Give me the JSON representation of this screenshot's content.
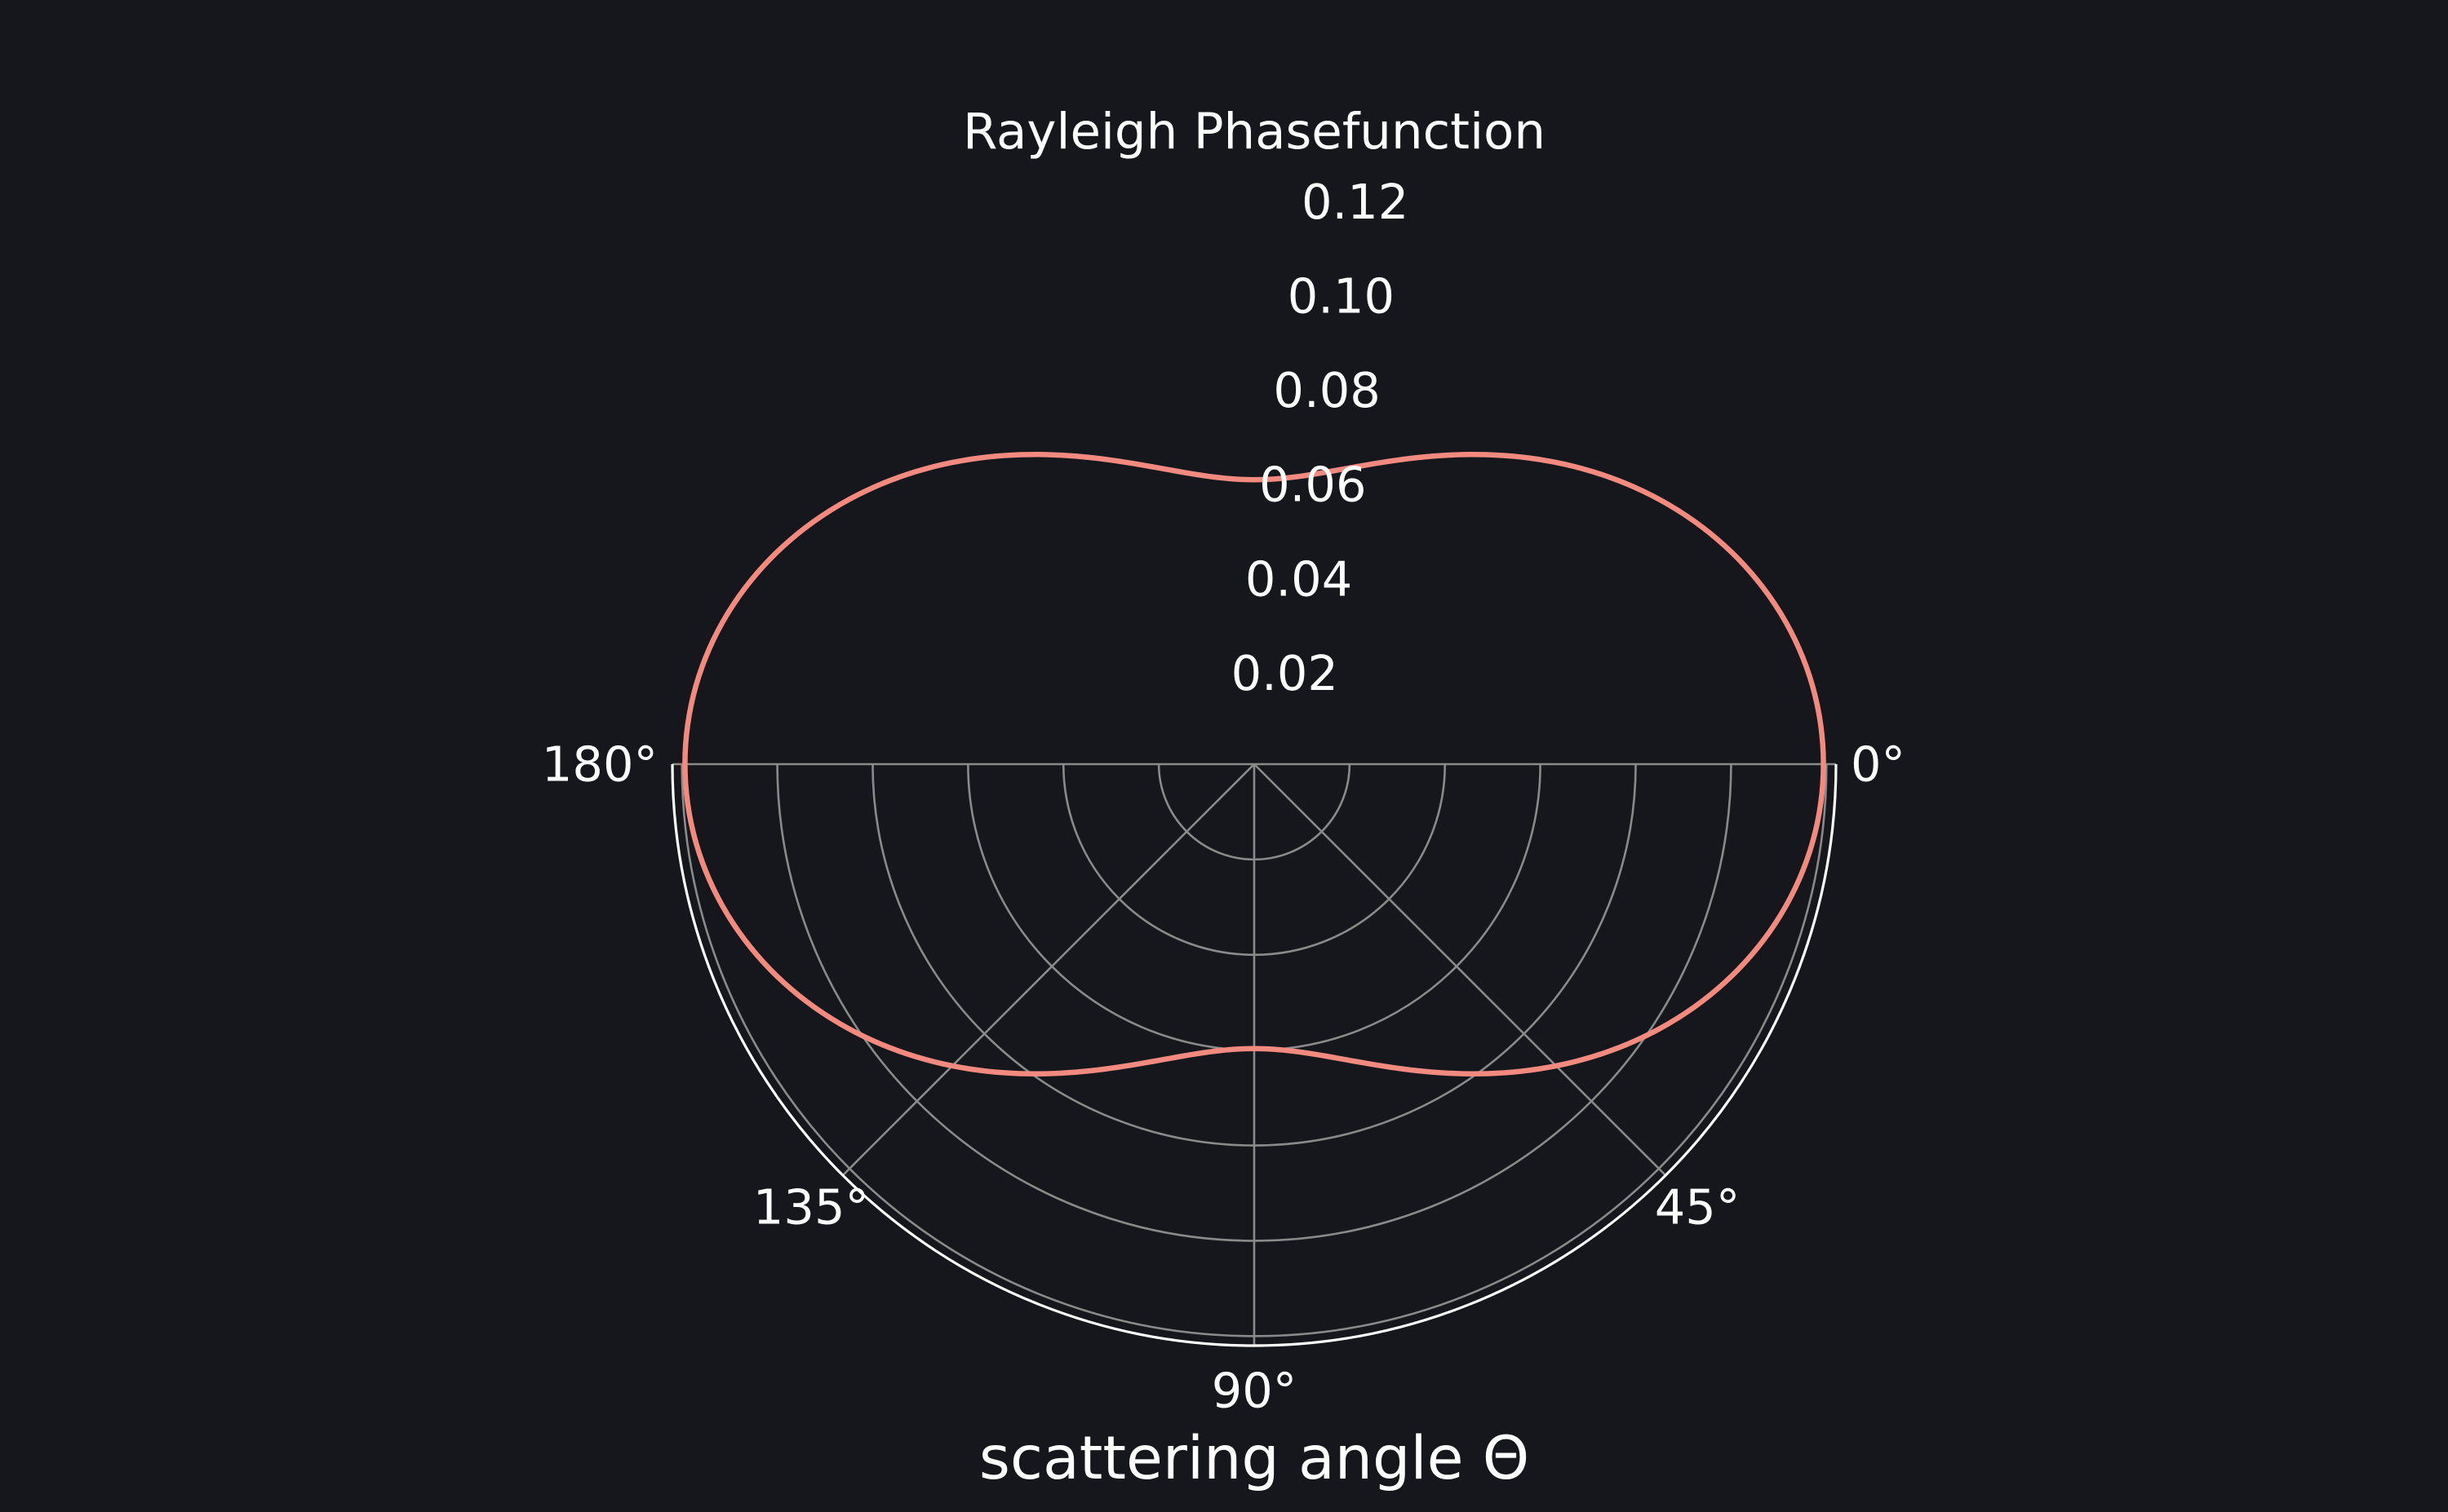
{
  "chart_data": {
    "type": "line",
    "projection": "polar",
    "title": "Rayleigh Phasefunction",
    "xlabel": "scattering angle Θ",
    "theta_range_deg": [
      0,
      180
    ],
    "theta_direction": "clockwise",
    "theta_zero_location": "right",
    "theta_ticks": [
      "0°",
      "45°",
      "90°",
      "135°",
      "180°"
    ],
    "theta_tick_values_deg": [
      0,
      45,
      90,
      135,
      180
    ],
    "r_range": [
      0,
      0.122
    ],
    "r_ticks": [
      "0.02",
      "0.04",
      "0.06",
      "0.08",
      "0.10",
      "0.12"
    ],
    "r_tick_values": [
      0.02,
      0.04,
      0.06,
      0.08,
      0.1,
      0.12
    ],
    "grid": true,
    "series": [
      {
        "function": "3/(16π)·(1 + cos²Θ)",
        "color": "#f28a80",
        "x_deg": [
          0,
          10,
          20,
          30,
          40,
          50,
          60,
          70,
          80,
          90,
          100,
          110,
          120,
          130,
          140,
          150,
          160,
          170,
          180
        ],
        "y": [
          0.1194,
          0.1175,
          0.1124,
          0.1044,
          0.0948,
          0.0844,
          0.0746,
          0.0667,
          0.0614,
          0.0597,
          0.0614,
          0.0667,
          0.0746,
          0.0844,
          0.0948,
          0.1044,
          0.1124,
          0.1175,
          0.1194
        ]
      }
    ],
    "colors": {
      "background": "#16171c",
      "grid": "#8a8a8a",
      "spine": "#ffffff",
      "text": "#ffffff",
      "line": "#f28a80"
    }
  }
}
